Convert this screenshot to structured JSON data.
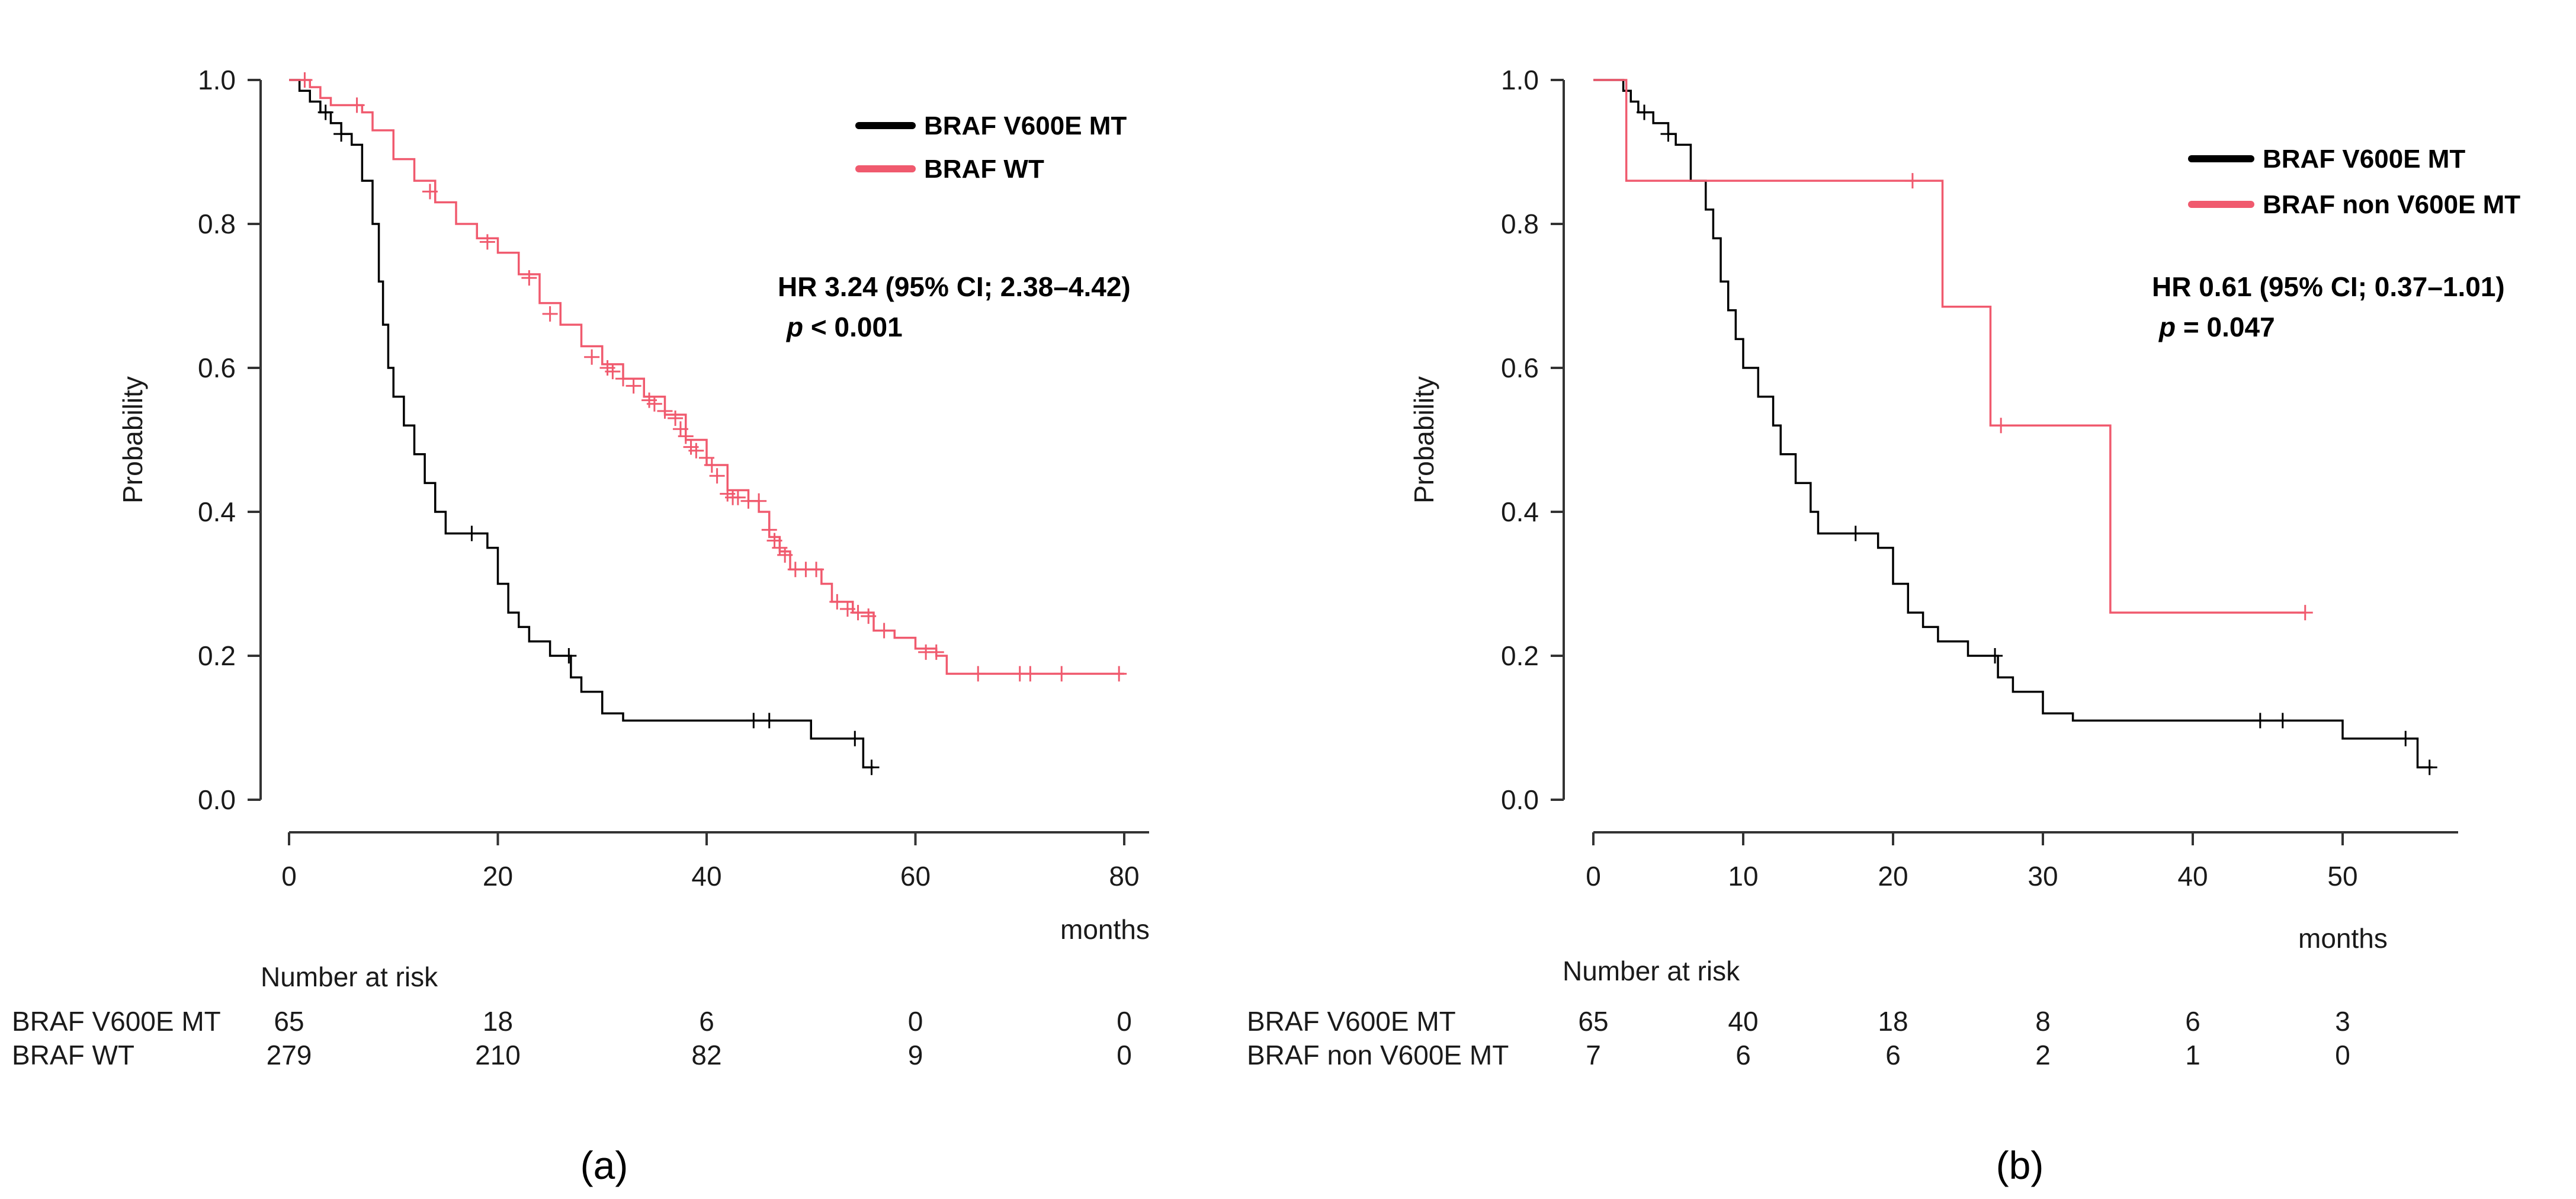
{
  "chart_data": [
    {
      "type": "line",
      "panel_label": "(a)",
      "ylabel": "Probability",
      "xlabel": "months",
      "xlim": [
        0,
        80
      ],
      "ylim": [
        0,
        1.0
      ],
      "x_ticks": [
        "0",
        "20",
        "40",
        "60",
        "80"
      ],
      "y_ticks": [
        "0.0",
        "0.2",
        "0.4",
        "0.6",
        "0.8",
        "1.0"
      ],
      "annotation": {
        "hr": "HR 3.24 (95% CI; 2.38–4.42)",
        "p_prefix": "p",
        "p_rest": " < 0.001"
      },
      "series": [
        {
          "name": "BRAF V600E MT",
          "color": "#000000",
          "steps": [
            [
              0,
              1.0
            ],
            [
              1,
              0.985
            ],
            [
              2,
              0.97
            ],
            [
              3,
              0.955
            ],
            [
              4,
              0.94
            ],
            [
              5,
              0.925
            ],
            [
              6,
              0.91
            ],
            [
              7,
              0.86
            ],
            [
              8,
              0.8
            ],
            [
              8.6,
              0.72
            ],
            [
              9,
              0.66
            ],
            [
              9.5,
              0.6
            ],
            [
              10,
              0.56
            ],
            [
              11,
              0.52
            ],
            [
              12,
              0.48
            ],
            [
              13,
              0.44
            ],
            [
              14,
              0.4
            ],
            [
              15,
              0.37
            ],
            [
              18,
              0.37
            ],
            [
              19,
              0.35
            ],
            [
              20,
              0.3
            ],
            [
              21,
              0.26
            ],
            [
              22,
              0.24
            ],
            [
              23,
              0.22
            ],
            [
              25,
              0.2
            ],
            [
              27,
              0.17
            ],
            [
              28,
              0.15
            ],
            [
              30,
              0.12
            ],
            [
              32,
              0.11
            ],
            [
              48,
              0.11
            ],
            [
              50,
              0.085
            ],
            [
              54,
              0.085
            ],
            [
              55,
              0.045
            ],
            [
              56,
              0.045
            ]
          ],
          "censor": [
            [
              3.5,
              0.955
            ],
            [
              5,
              0.925
            ],
            [
              17.5,
              0.37
            ],
            [
              26.8,
              0.2
            ],
            [
              44.5,
              0.11
            ],
            [
              46,
              0.11
            ],
            [
              54.2,
              0.085
            ],
            [
              55.8,
              0.045
            ]
          ]
        },
        {
          "name": "BRAF WT",
          "color": "#f05a6e",
          "steps": [
            [
              0,
              1.0
            ],
            [
              2,
              0.99
            ],
            [
              3,
              0.975
            ],
            [
              4,
              0.965
            ],
            [
              7,
              0.955
            ],
            [
              8,
              0.93
            ],
            [
              10,
              0.89
            ],
            [
              12,
              0.86
            ],
            [
              14,
              0.83
            ],
            [
              16,
              0.8
            ],
            [
              18,
              0.78
            ],
            [
              20,
              0.76
            ],
            [
              22,
              0.73
            ],
            [
              24,
              0.69
            ],
            [
              26,
              0.66
            ],
            [
              28,
              0.63
            ],
            [
              30,
              0.605
            ],
            [
              32,
              0.585
            ],
            [
              34,
              0.56
            ],
            [
              36,
              0.535
            ],
            [
              38,
              0.5
            ],
            [
              40,
              0.465
            ],
            [
              42,
              0.43
            ],
            [
              44,
              0.415
            ],
            [
              45,
              0.4
            ],
            [
              46,
              0.365
            ],
            [
              47,
              0.345
            ],
            [
              48,
              0.32
            ],
            [
              50,
              0.32
            ],
            [
              51,
              0.3
            ],
            [
              52,
              0.275
            ],
            [
              54,
              0.26
            ],
            [
              56,
              0.235
            ],
            [
              58,
              0.225
            ],
            [
              60,
              0.21
            ],
            [
              62,
              0.2
            ],
            [
              63,
              0.175
            ],
            [
              80,
              0.175
            ]
          ],
          "censor": [
            [
              1.5,
              1.0
            ],
            [
              6.5,
              0.965
            ],
            [
              13.5,
              0.845
            ],
            [
              19,
              0.775
            ],
            [
              23,
              0.725
            ],
            [
              25,
              0.675
            ],
            [
              29,
              0.615
            ],
            [
              30.5,
              0.6
            ],
            [
              31,
              0.595
            ],
            [
              32,
              0.585
            ],
            [
              33,
              0.575
            ],
            [
              34.5,
              0.555
            ],
            [
              35,
              0.55
            ],
            [
              36,
              0.54
            ],
            [
              37,
              0.53
            ],
            [
              37.5,
              0.515
            ],
            [
              38,
              0.505
            ],
            [
              38.5,
              0.49
            ],
            [
              39,
              0.485
            ],
            [
              40,
              0.475
            ],
            [
              40.5,
              0.465
            ],
            [
              41,
              0.45
            ],
            [
              42,
              0.425
            ],
            [
              42.5,
              0.42
            ],
            [
              43,
              0.42
            ],
            [
              44,
              0.415
            ],
            [
              45,
              0.415
            ],
            [
              46,
              0.375
            ],
            [
              46.5,
              0.36
            ],
            [
              47,
              0.35
            ],
            [
              47.5,
              0.34
            ],
            [
              48.5,
              0.32
            ],
            [
              49.5,
              0.32
            ],
            [
              50.5,
              0.32
            ],
            [
              52.5,
              0.275
            ],
            [
              53.5,
              0.265
            ],
            [
              54.5,
              0.26
            ],
            [
              55.5,
              0.255
            ],
            [
              57,
              0.235
            ],
            [
              61,
              0.205
            ],
            [
              62,
              0.205
            ],
            [
              66,
              0.175
            ],
            [
              70,
              0.175
            ],
            [
              71,
              0.175
            ],
            [
              74,
              0.175
            ],
            [
              79.5,
              0.175
            ]
          ]
        }
      ],
      "risk_table": {
        "title": "Number at risk",
        "times": [
          0,
          20,
          40,
          60,
          80
        ],
        "rows": [
          {
            "label": "BRAF V600E MT",
            "counts": [
              "65",
              "18",
              "6",
              "0",
              "0"
            ]
          },
          {
            "label": "BRAF WT",
            "counts": [
              "279",
              "210",
              "82",
              "9",
              "0"
            ]
          }
        ]
      }
    },
    {
      "type": "line",
      "panel_label": "(b)",
      "ylabel": "Probability",
      "xlabel": "months",
      "xlim": [
        0,
        55
      ],
      "ylim": [
        0,
        1.0
      ],
      "x_ticks": [
        "0",
        "10",
        "20",
        "30",
        "40",
        "50"
      ],
      "y_ticks": [
        "0.0",
        "0.2",
        "0.4",
        "0.6",
        "0.8",
        "1.0"
      ],
      "annotation": {
        "hr": "HR 0.61 (95% CI; 0.37–1.01)",
        "p_prefix": "p",
        "p_rest": " = 0.047"
      },
      "series": [
        {
          "name": "BRAF V600E MT",
          "color": "#000000",
          "steps": [
            [
              0,
              1.0
            ],
            [
              2,
              0.985
            ],
            [
              2.5,
              0.97
            ],
            [
              3,
              0.955
            ],
            [
              4,
              0.94
            ],
            [
              5,
              0.925
            ],
            [
              5.5,
              0.91
            ],
            [
              6.5,
              0.86
            ],
            [
              7.5,
              0.82
            ],
            [
              8,
              0.78
            ],
            [
              8.5,
              0.72
            ],
            [
              9,
              0.68
            ],
            [
              9.5,
              0.64
            ],
            [
              10,
              0.6
            ],
            [
              11,
              0.56
            ],
            [
              12,
              0.52
            ],
            [
              12.5,
              0.48
            ],
            [
              13.5,
              0.44
            ],
            [
              14.5,
              0.4
            ],
            [
              15,
              0.37
            ],
            [
              18,
              0.37
            ],
            [
              19,
              0.35
            ],
            [
              20,
              0.3
            ],
            [
              21,
              0.26
            ],
            [
              22,
              0.24
            ],
            [
              23,
              0.22
            ],
            [
              25,
              0.2
            ],
            [
              27,
              0.17
            ],
            [
              28,
              0.15
            ],
            [
              30,
              0.12
            ],
            [
              32,
              0.11
            ],
            [
              48,
              0.11
            ],
            [
              50,
              0.085
            ],
            [
              54,
              0.085
            ],
            [
              55,
              0.045
            ],
            [
              56,
              0.045
            ]
          ],
          "censor": [
            [
              3.4,
              0.955
            ],
            [
              5,
              0.925
            ],
            [
              17.5,
              0.37
            ],
            [
              26.8,
              0.2
            ],
            [
              44.5,
              0.11
            ],
            [
              46,
              0.11
            ],
            [
              54.2,
              0.085
            ],
            [
              55.8,
              0.045
            ]
          ]
        },
        {
          "name": "BRAF non V600E MT",
          "color": "#f05a6e",
          "steps": [
            [
              0,
              1.0
            ],
            [
              2.2,
              0.86
            ],
            [
              23.3,
              0.685
            ],
            [
              26.5,
              0.52
            ],
            [
              34.5,
              0.26
            ],
            [
              47.5,
              0.26
            ]
          ],
          "censor": [
            [
              21.3,
              0.86
            ],
            [
              27.2,
              0.52
            ],
            [
              47.5,
              0.26
            ]
          ]
        }
      ],
      "risk_table": {
        "title": "Number at risk",
        "times": [
          0,
          10,
          20,
          30,
          40,
          50
        ],
        "rows": [
          {
            "label": "BRAF V600E MT",
            "counts": [
              "65",
              "40",
              "18",
              "8",
              "6",
              "3"
            ]
          },
          {
            "label": "BRAF non V600E MT",
            "counts": [
              "7",
              "6",
              "6",
              "2",
              "1",
              "0"
            ]
          }
        ]
      }
    }
  ]
}
